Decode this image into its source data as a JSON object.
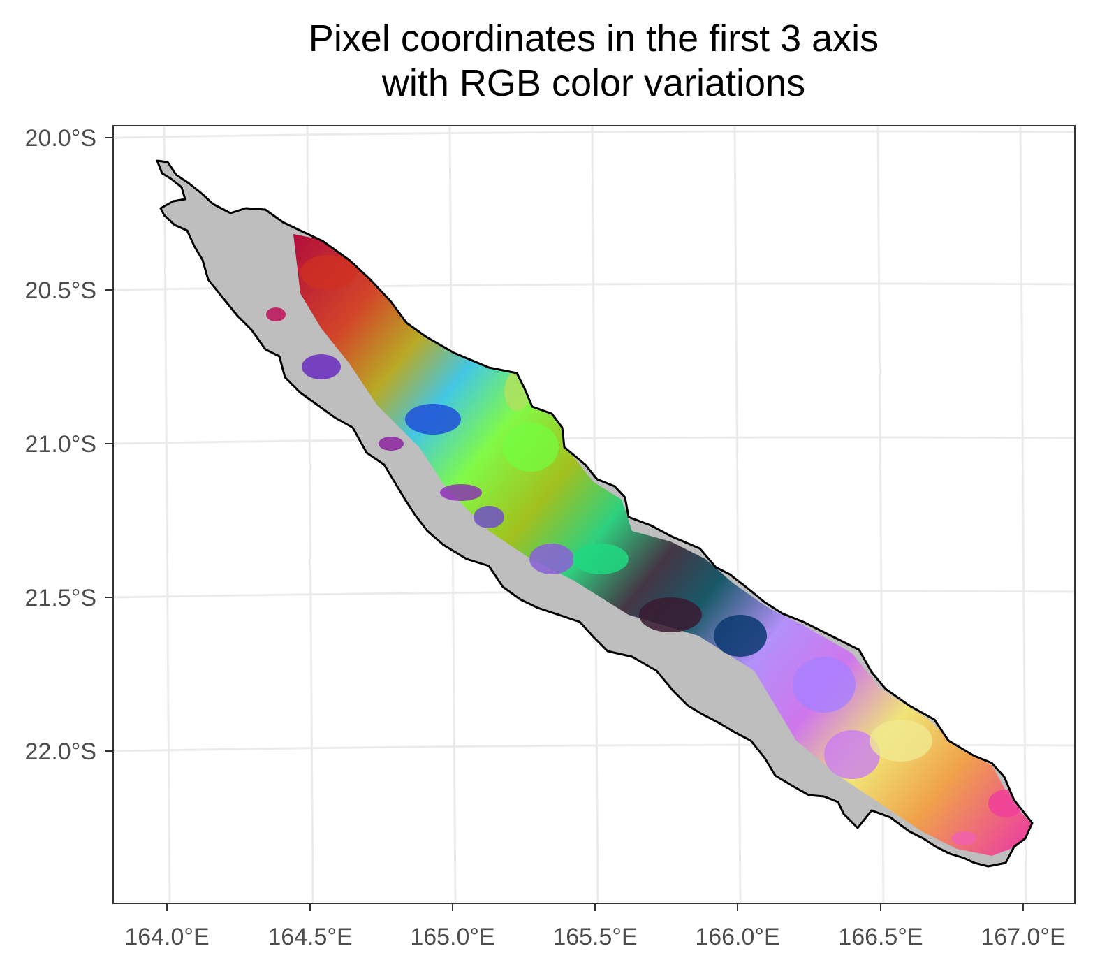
{
  "title_line1": "Pixel coordinates in the first 3 axis",
  "title_line2": "with RGB color variations",
  "axes": {
    "x_ticks": [
      "164.0°E",
      "164.5°E",
      "165.0°E",
      "165.5°E",
      "166.0°E",
      "166.5°E",
      "167.0°E"
    ],
    "y_ticks": [
      "20.0°S",
      "20.5°S",
      "21.0°S",
      "21.5°S",
      "22.0°S"
    ],
    "x_range": [
      163.8,
      167.2
    ],
    "y_range": [
      -22.5,
      -19.97
    ],
    "grid": true
  },
  "colors": {
    "land": "#bebebe",
    "coastline": "#000000",
    "panel_border": "#333333",
    "grid": "#ebebeb"
  }
}
